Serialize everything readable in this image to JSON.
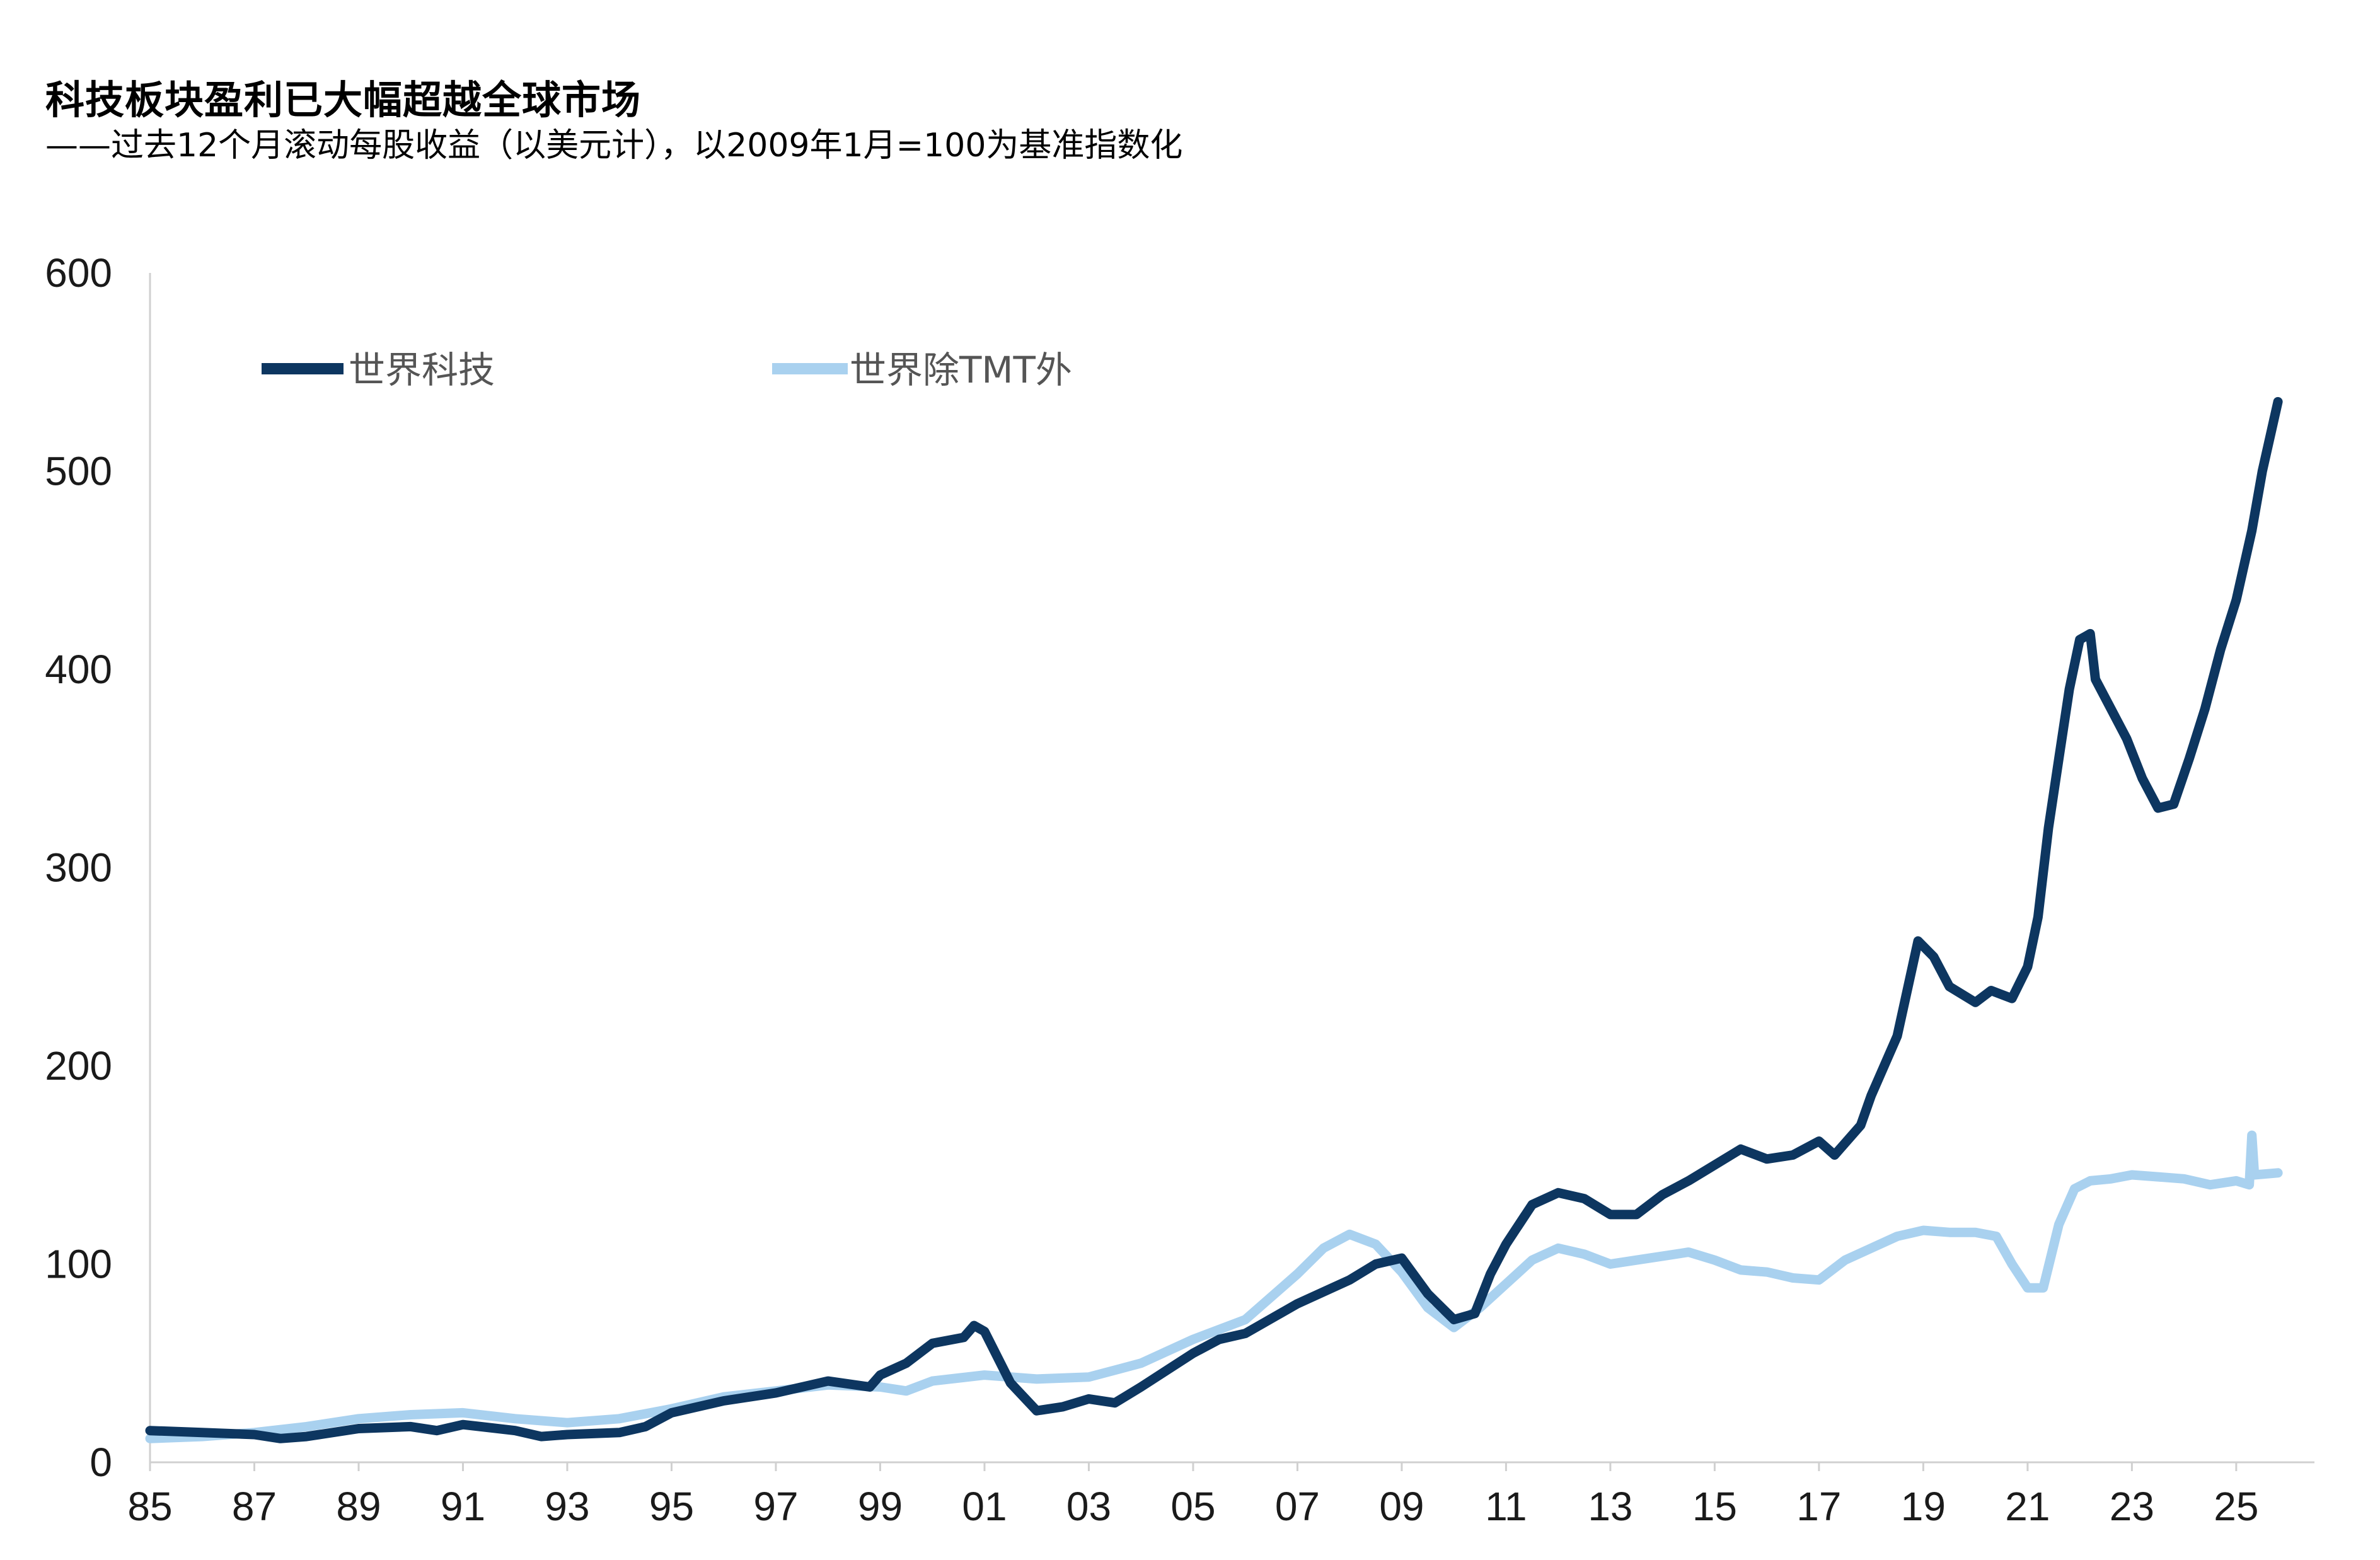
{
  "title": "科技板块盈利已大幅超越全球市场",
  "subtitle": "——过去12个月滚动每股收益（以美元计），以2009年1月=100为基准指数化",
  "colors": {
    "tech": "#0d3660",
    "ex_tmt": "#a9d1ef",
    "axis": "#d0d0d0"
  },
  "chart_data": {
    "type": "line",
    "title": "科技板块盈利已大幅超越全球市场",
    "subtitle": "——过去12个月滚动每股收益（以美元计），以2009年1月=100为基准指数化",
    "xlabel": "",
    "ylabel": "",
    "xlim": [
      1985,
      2026.5
    ],
    "ylim": [
      0,
      600
    ],
    "y_ticks": [
      0,
      100,
      200,
      300,
      400,
      500,
      600
    ],
    "x_ticks": [
      1985,
      1987,
      1989,
      1991,
      1993,
      1995,
      1997,
      1999,
      2001,
      2003,
      2005,
      2007,
      2009,
      2011,
      2013,
      2015,
      2017,
      2019,
      2021,
      2023,
      2025
    ],
    "x_tick_labels": [
      "85",
      "87",
      "89",
      "91",
      "93",
      "95",
      "97",
      "99",
      "01",
      "03",
      "05",
      "07",
      "09",
      "11",
      "13",
      "15",
      "17",
      "19",
      "21",
      "23",
      "25"
    ],
    "grid": false,
    "legend": "top-left",
    "series": [
      {
        "name": "世界科技",
        "color": "#0d3660",
        "points": [
          [
            1985,
            16
          ],
          [
            1986,
            15
          ],
          [
            1987,
            14
          ],
          [
            1987.5,
            12
          ],
          [
            1988,
            13
          ],
          [
            1989,
            17
          ],
          [
            1990,
            18
          ],
          [
            1990.5,
            16
          ],
          [
            1991,
            19
          ],
          [
            1992,
            16
          ],
          [
            1992.5,
            13
          ],
          [
            1993,
            14
          ],
          [
            1994,
            15
          ],
          [
            1994.5,
            18
          ],
          [
            1995,
            25
          ],
          [
            1996,
            31
          ],
          [
            1997,
            35
          ],
          [
            1998,
            41
          ],
          [
            1998.8,
            38
          ],
          [
            1999,
            44
          ],
          [
            1999.5,
            50
          ],
          [
            2000,
            60
          ],
          [
            2000.6,
            63
          ],
          [
            2000.8,
            69
          ],
          [
            2001,
            66
          ],
          [
            2001.5,
            40
          ],
          [
            2002,
            26
          ],
          [
            2002.5,
            28
          ],
          [
            2003,
            32
          ],
          [
            2003.5,
            30
          ],
          [
            2004,
            38
          ],
          [
            2005,
            55
          ],
          [
            2005.5,
            62
          ],
          [
            2006,
            65
          ],
          [
            2007,
            80
          ],
          [
            2008,
            92
          ],
          [
            2008.5,
            100
          ],
          [
            2009,
            103
          ],
          [
            2009.5,
            85
          ],
          [
            2010,
            72
          ],
          [
            2010.4,
            75
          ],
          [
            2010.7,
            95
          ],
          [
            2011,
            110
          ],
          [
            2011.5,
            130
          ],
          [
            2012,
            136
          ],
          [
            2012.5,
            133
          ],
          [
            2013,
            125
          ],
          [
            2013.5,
            125
          ],
          [
            2014,
            135
          ],
          [
            2014.5,
            142
          ],
          [
            2015,
            150
          ],
          [
            2015.5,
            158
          ],
          [
            2016,
            153
          ],
          [
            2016.5,
            155
          ],
          [
            2017,
            162
          ],
          [
            2017.3,
            155
          ],
          [
            2017.8,
            170
          ],
          [
            2018,
            185
          ],
          [
            2018.5,
            215
          ],
          [
            2018.9,
            263
          ],
          [
            2019.2,
            255
          ],
          [
            2019.5,
            240
          ],
          [
            2020,
            232
          ],
          [
            2020.3,
            238
          ],
          [
            2020.7,
            234
          ],
          [
            2021,
            250
          ],
          [
            2021.2,
            275
          ],
          [
            2021.4,
            320
          ],
          [
            2021.6,
            355
          ],
          [
            2021.8,
            390
          ],
          [
            2022,
            415
          ],
          [
            2022.2,
            418
          ],
          [
            2022.3,
            395
          ],
          [
            2022.6,
            380
          ],
          [
            2022.9,
            365
          ],
          [
            2023.2,
            345
          ],
          [
            2023.5,
            330
          ],
          [
            2023.8,
            332
          ],
          [
            2024.1,
            355
          ],
          [
            2024.4,
            380
          ],
          [
            2024.7,
            410
          ],
          [
            2025,
            435
          ],
          [
            2025.3,
            470
          ],
          [
            2025.5,
            500
          ],
          [
            2025.8,
            535
          ]
        ]
      },
      {
        "name": "世界除TMT外",
        "color": "#a9d1ef",
        "points": [
          [
            1985,
            12
          ],
          [
            1986,
            13
          ],
          [
            1987,
            15
          ],
          [
            1988,
            18
          ],
          [
            1989,
            22
          ],
          [
            1990,
            24
          ],
          [
            1991,
            25
          ],
          [
            1992,
            22
          ],
          [
            1993,
            20
          ],
          [
            1994,
            22
          ],
          [
            1995,
            27
          ],
          [
            1996,
            33
          ],
          [
            1997,
            36
          ],
          [
            1998,
            39
          ],
          [
            1999,
            38
          ],
          [
            1999.5,
            36
          ],
          [
            2000,
            41
          ],
          [
            2001,
            44
          ],
          [
            2002,
            42
          ],
          [
            2003,
            43
          ],
          [
            2004,
            50
          ],
          [
            2005,
            62
          ],
          [
            2006,
            72
          ],
          [
            2007,
            95
          ],
          [
            2007.5,
            108
          ],
          [
            2008,
            115
          ],
          [
            2008.5,
            110
          ],
          [
            2009,
            96
          ],
          [
            2009.5,
            78
          ],
          [
            2010,
            68
          ],
          [
            2010.5,
            78
          ],
          [
            2011,
            90
          ],
          [
            2011.5,
            102
          ],
          [
            2012,
            108
          ],
          [
            2012.5,
            105
          ],
          [
            2013,
            100
          ],
          [
            2013.5,
            102
          ],
          [
            2014,
            104
          ],
          [
            2014.5,
            106
          ],
          [
            2015,
            102
          ],
          [
            2015.5,
            97
          ],
          [
            2016,
            96
          ],
          [
            2016.5,
            93
          ],
          [
            2017,
            92
          ],
          [
            2017.5,
            102
          ],
          [
            2018,
            108
          ],
          [
            2018.5,
            114
          ],
          [
            2019,
            117
          ],
          [
            2019.5,
            116
          ],
          [
            2020,
            116
          ],
          [
            2020.4,
            114
          ],
          [
            2020.7,
            100
          ],
          [
            2021,
            88
          ],
          [
            2021.3,
            88
          ],
          [
            2021.6,
            120
          ],
          [
            2021.9,
            138
          ],
          [
            2022.2,
            142
          ],
          [
            2022.6,
            143
          ],
          [
            2023,
            145
          ],
          [
            2023.5,
            144
          ],
          [
            2024,
            143
          ],
          [
            2024.5,
            140
          ],
          [
            2025,
            142
          ],
          [
            2025.25,
            140
          ],
          [
            2025.3,
            165
          ],
          [
            2025.35,
            145
          ],
          [
            2025.8,
            146
          ]
        ]
      }
    ]
  }
}
